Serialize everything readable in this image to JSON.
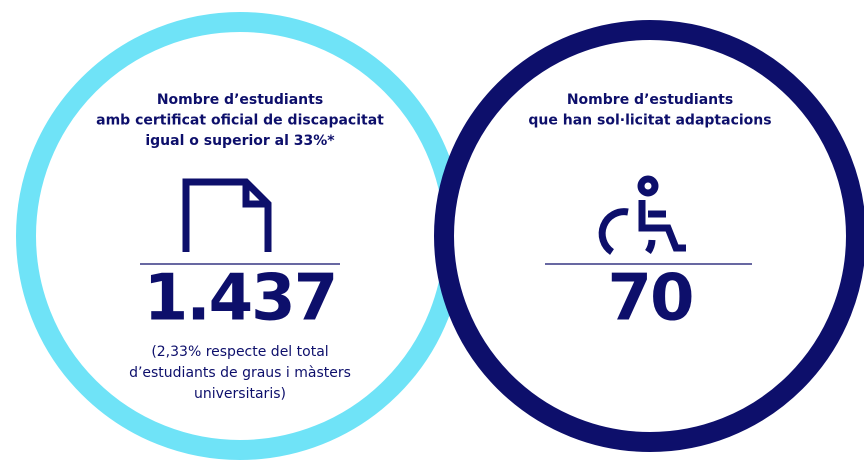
{
  "panels": [
    {
      "title_lines": [
        "Nombre d’estudiants",
        "amb certificat oficial de discapacitat",
        "igual o superior al 33%*"
      ],
      "value": "1.437",
      "note_lines": [
        "(2,33% respecte del total",
        "d’estudiants de graus i màsters",
        "universitaris)"
      ]
    },
    {
      "title_lines": [
        "Nombre d’estudiants",
        "que han sol·licitat adaptacions"
      ],
      "value": "70",
      "note_lines": []
    }
  ]
}
